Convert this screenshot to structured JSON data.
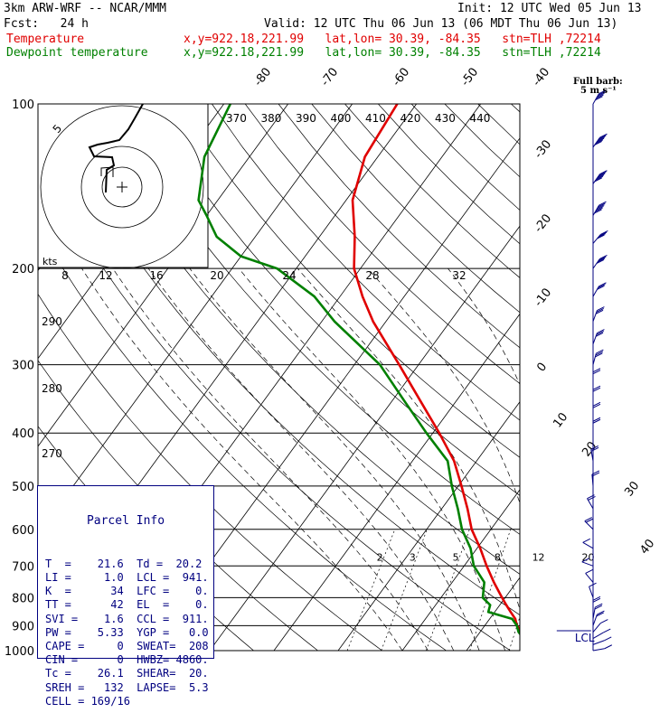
{
  "header": {
    "model": "3km ARW-WRF -- NCAR/MMM",
    "init": "Init: 12 UTC Wed 05 Jun 13",
    "fcst": "Fcst:   24 h",
    "valid": "Valid: 12 UTC Thu 06 Jun 13 (06 MDT Thu 06 Jun 13)",
    "temp_label": "Temperature",
    "dew_label": "Dewpoint temperature",
    "temp_info": "x,y=922.18,221.99   lat,lon= 30.39, -84.35   stn=TLH ,72214",
    "dew_info": "x,y=922.18,221.99   lat,lon= 30.39, -84.35   stn=TLH ,72214"
  },
  "barb_legend": {
    "title": "Full barb:",
    "value": "5 m s⁻¹"
  },
  "hodograph": {
    "units": "kts",
    "ring_label": "5"
  },
  "parcel_info": {
    "title": "Parcel Info",
    "rows": [
      "T  =    21.6  Td =  20.2",
      "LI =     1.0  LCL =  941.",
      "K  =      34  LFC =    0.",
      "TT =      42  EL  =    0.",
      "SVI =    1.6  CCL =  911.",
      "PW =    5.33  YGP =   0.0",
      "CAPE =     0  SWEAT=  208",
      "CIN =      0  HWBZ= 4860.",
      "Tc =    26.1  SHEAR=  20.",
      "SREH =   132  LAPSE=  5.3",
      "CELL = 169/16"
    ]
  },
  "colors": {
    "temperature": "#e00000",
    "dewpoint": "#008000",
    "barbs": "#000080",
    "isotherm": "#000000"
  },
  "chart_data": {
    "type": "line",
    "y_axis": {
      "label": "",
      "scale": "log-pressure",
      "ylim": [
        1000,
        100
      ],
      "unit": "hPa",
      "ticks": [
        "100",
        "200",
        "300",
        "400",
        "500",
        "600",
        "700",
        "800",
        "900",
        "1000"
      ]
    },
    "isotherm_labels": [
      "-80",
      "-70",
      "-60",
      "-50",
      "-40",
      "-30",
      "-20",
      "-10",
      "0",
      "10",
      "20",
      "30",
      "40"
    ],
    "theta_labels_top": [
      "370",
      "380",
      "390",
      "400",
      "410",
      "420",
      "430",
      "440"
    ],
    "theta_labels_left": [
      "290",
      "280",
      "270"
    ],
    "mixing_ratio_labels": [
      "2",
      "3",
      "5",
      "8",
      "12",
      "20"
    ],
    "hodo_speed_labels": [
      "8",
      "12",
      "16",
      "20",
      "24",
      "28",
      "32"
    ],
    "lcl_label": "LCL",
    "series": [
      {
        "name": "Temperature",
        "values": [
          [
            1000,
            22
          ],
          [
            975,
            20
          ],
          [
            950,
            18.5
          ],
          [
            925,
            16.5
          ],
          [
            900,
            15
          ],
          [
            875,
            14
          ],
          [
            850,
            12.5
          ],
          [
            825,
            11
          ],
          [
            800,
            9.5
          ],
          [
            750,
            6.5
          ],
          [
            700,
            3.5
          ],
          [
            650,
            0.5
          ],
          [
            600,
            -3
          ],
          [
            550,
            -6
          ],
          [
            500,
            -9.5
          ],
          [
            450,
            -13.5
          ],
          [
            400,
            -19
          ],
          [
            350,
            -25.5
          ],
          [
            300,
            -33
          ],
          [
            250,
            -42
          ],
          [
            225,
            -46.5
          ],
          [
            200,
            -51
          ],
          [
            175,
            -54.5
          ],
          [
            150,
            -59
          ],
          [
            125,
            -62
          ],
          [
            100,
            -63
          ]
        ]
      },
      {
        "name": "Dewpoint temperature",
        "values": [
          [
            1000,
            20.2
          ],
          [
            975,
            18.5
          ],
          [
            950,
            17.5
          ],
          [
            925,
            16
          ],
          [
            900,
            15
          ],
          [
            875,
            13.5
          ],
          [
            850,
            9
          ],
          [
            825,
            8.5
          ],
          [
            800,
            6.5
          ],
          [
            750,
            5
          ],
          [
            700,
            1.5
          ],
          [
            650,
            -1
          ],
          [
            600,
            -4.5
          ],
          [
            550,
            -7.5
          ],
          [
            500,
            -11
          ],
          [
            450,
            -14.5
          ],
          [
            400,
            -21
          ],
          [
            350,
            -28
          ],
          [
            300,
            -36
          ],
          [
            250,
            -48
          ],
          [
            225,
            -54
          ],
          [
            200,
            -63
          ],
          [
            190,
            -70
          ],
          [
            175,
            -76
          ],
          [
            160,
            -80
          ],
          [
            150,
            -83
          ],
          [
            125,
            -87
          ],
          [
            100,
            -89
          ]
        ]
      }
    ],
    "wind_barbs": [
      {
        "p": 100,
        "spd": 25,
        "dir": 210
      },
      {
        "p": 120,
        "spd": 30,
        "dir": 215
      },
      {
        "p": 140,
        "spd": 30,
        "dir": 215
      },
      {
        "p": 160,
        "spd": 30,
        "dir": 210
      },
      {
        "p": 180,
        "spd": 20,
        "dir": 220
      },
      {
        "p": 200,
        "spd": 20,
        "dir": 215
      },
      {
        "p": 225,
        "spd": 15,
        "dir": 210
      },
      {
        "p": 250,
        "spd": 15,
        "dir": 200
      },
      {
        "p": 275,
        "spd": 15,
        "dir": 200
      },
      {
        "p": 300,
        "spd": 15,
        "dir": 195
      },
      {
        "p": 325,
        "spd": 10,
        "dir": 180
      },
      {
        "p": 350,
        "spd": 10,
        "dir": 180
      },
      {
        "p": 375,
        "spd": 10,
        "dir": 180
      },
      {
        "p": 400,
        "spd": 10,
        "dir": 180
      },
      {
        "p": 450,
        "spd": 10,
        "dir": 170
      },
      {
        "p": 500,
        "spd": 10,
        "dir": 175
      },
      {
        "p": 550,
        "spd": 10,
        "dir": 150
      },
      {
        "p": 600,
        "spd": 10,
        "dir": 135
      },
      {
        "p": 650,
        "spd": 5,
        "dir": 120
      },
      {
        "p": 700,
        "spd": 5,
        "dir": 110
      },
      {
        "p": 750,
        "spd": 5,
        "dir": 140
      },
      {
        "p": 800,
        "spd": 5,
        "dir": 160
      },
      {
        "p": 850,
        "spd": 10,
        "dir": 180
      },
      {
        "p": 875,
        "spd": 10,
        "dir": 190
      },
      {
        "p": 900,
        "spd": 10,
        "dir": 200
      },
      {
        "p": 925,
        "spd": 5,
        "dir": 220
      },
      {
        "p": 950,
        "spd": 5,
        "dir": 240
      },
      {
        "p": 975,
        "spd": 5,
        "dir": 250
      },
      {
        "p": 1000,
        "spd": 5,
        "dir": 260
      }
    ],
    "grid": true
  }
}
